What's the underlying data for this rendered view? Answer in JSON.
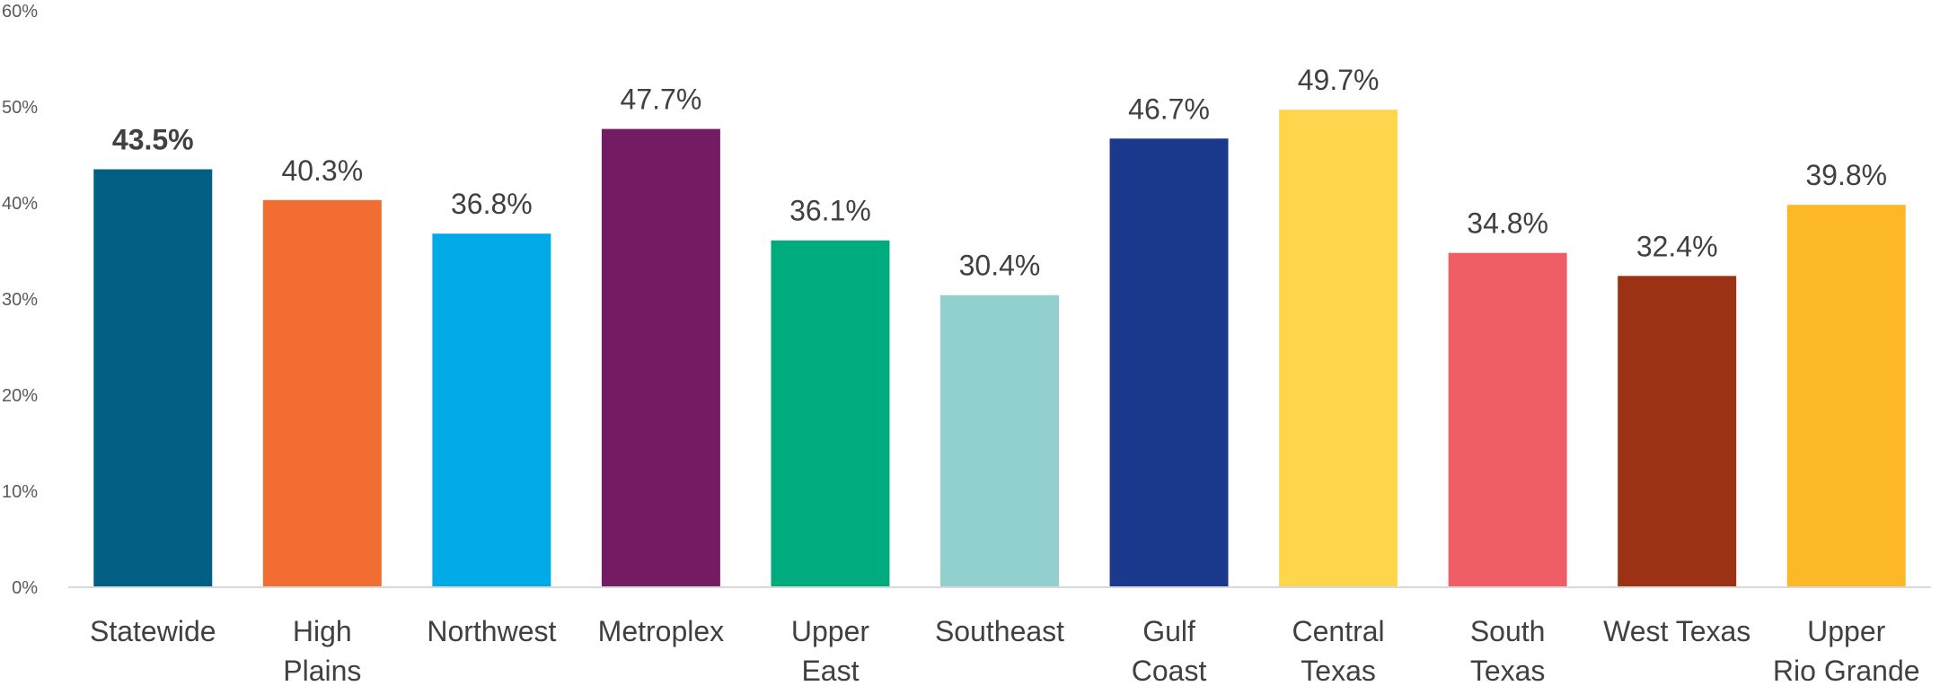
{
  "chart_data": {
    "type": "bar",
    "title": "",
    "xlabel": "",
    "ylabel": "",
    "categories": [
      [
        "Statewide"
      ],
      [
        "High",
        "Plains"
      ],
      [
        "Northwest"
      ],
      [
        "Metroplex"
      ],
      [
        "Upper",
        "East"
      ],
      [
        "Southeast"
      ],
      [
        "Gulf",
        "Coast"
      ],
      [
        "Central",
        "Texas"
      ],
      [
        "South",
        "Texas"
      ],
      [
        "West Texas"
      ],
      [
        "Upper",
        "Rio Grande"
      ]
    ],
    "values": [
      43.5,
      40.3,
      36.8,
      47.7,
      36.1,
      30.4,
      46.7,
      49.7,
      34.8,
      32.4,
      39.8
    ],
    "data_labels": [
      "43.5%",
      "40.3%",
      "36.8%",
      "47.7%",
      "36.1%",
      "30.4%",
      "46.7%",
      "49.7%",
      "34.8%",
      "32.4%",
      "39.8%"
    ],
    "bold_label_index": 0,
    "colors": [
      "#005F83",
      "#F26D32",
      "#00AAE7",
      "#731C64",
      "#00AB7E",
      "#91D0CC",
      "#1B398C",
      "#FED64E",
      "#EF5E67",
      "#9C3214",
      "#FDB827"
    ],
    "ylim": [
      0,
      60
    ],
    "y_ticks": [
      0,
      10,
      20,
      30,
      40,
      50,
      60
    ],
    "y_tick_labels": [
      "0%",
      "10%",
      "20%",
      "30%",
      "40%",
      "50%",
      "60%"
    ],
    "grid": false,
    "legend": "none"
  }
}
